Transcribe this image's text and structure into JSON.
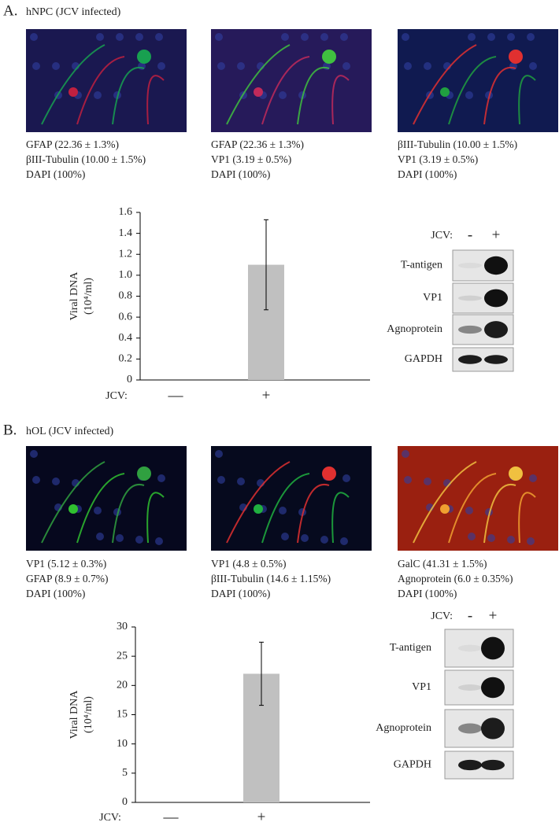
{
  "chart_data": [
    {
      "type": "bar",
      "y_label": [
        "Viral DNA",
        "(10⁴/ml)"
      ],
      "x_label": "JCV:",
      "categories": [
        "—",
        "+"
      ],
      "values": [
        0,
        1.1
      ],
      "errors": [
        0,
        0.43
      ],
      "color": "#c0c0c0",
      "ylim": [
        0,
        1.6
      ],
      "yticks": [
        {
          "value": 0,
          "label": "0"
        },
        {
          "value": 0.2,
          "label": "0.2"
        },
        {
          "value": 0.4,
          "label": "0.4"
        },
        {
          "value": 0.6,
          "label": "0.6"
        },
        {
          "value": 0.8,
          "label": "0.8"
        },
        {
          "value": 1,
          "label": "1.0"
        },
        {
          "value": 1.2,
          "label": "1.2"
        },
        {
          "value": 1.4,
          "label": "1.4"
        },
        {
          "value": 1.6,
          "label": "1.6"
        }
      ]
    },
    {
      "type": "bar",
      "y_label": [
        "Viral DNA",
        "(10⁴/ml)"
      ],
      "x_label": "JCV:",
      "categories": [
        "—",
        "+"
      ],
      "values": [
        0,
        22
      ],
      "errors": [
        0,
        5.4
      ],
      "color": "#c0c0c0",
      "ylim": [
        0,
        30
      ],
      "yticks": [
        0,
        5,
        10,
        15,
        20,
        25,
        30
      ]
    }
  ],
  "panels": [
    {
      "label": "A.",
      "title": "hNPC (JCV infected)",
      "images": [
        {
          "captions": [
            {
              "text": "GFAP (22.36 ± 1.3%)",
              "color": "#e0262b"
            },
            {
              "text": "βIII-Tubulin (10.00 ± 1.5%)",
              "color": "#1d9a4c"
            },
            {
              "text": "DAPI (100%)",
              "color": "#2a62a8"
            }
          ]
        },
        {
          "captions": [
            {
              "text": "GFAP (22.36 ± 1.3%)",
              "color": "#e0262b"
            },
            {
              "text": "VP1 (3.19 ± 0.5%)",
              "color": "#1d9a4c"
            },
            {
              "text": "DAPI (100%)",
              "color": "#2a62a8"
            }
          ]
        },
        {
          "captions": [
            {
              "text": "βIII-Tubulin (10.00 ± 1.5%)",
              "color": "#1d9a4c"
            },
            {
              "text": "VP1 (3.19 ± 0.5%)",
              "color": "#e0262b"
            },
            {
              "text": "DAPI (100%)",
              "color": "#2a62a8"
            }
          ]
        }
      ],
      "blot": {
        "header": "JCV:",
        "lanes": [
          "-",
          "+"
        ],
        "rows": [
          "T-antigen",
          "VP1",
          "Agnoprotein",
          "GAPDH"
        ]
      }
    },
    {
      "label": "B.",
      "title": "hOL (JCV infected)",
      "images": [
        {
          "captions": [
            {
              "text": "VP1 (5.12 ± 0.3%)",
              "color": "#e0262b"
            },
            {
              "text": "GFAP (8.9 ± 0.7%)",
              "color": "#1d9a4c"
            },
            {
              "text": "DAPI (100%)",
              "color": "#2a62a8"
            }
          ]
        },
        {
          "captions": [
            {
              "text": "VP1 (4.8 ± 0.5%)",
              "color": "#e0262b"
            },
            {
              "text": "βIII-Tubulin (14.6 ± 1.15%)",
              "color": "#1d9a4c"
            },
            {
              "text": "DAPI (100%)",
              "color": "#2a62a8"
            }
          ]
        },
        {
          "captions": [
            {
              "text": "GalC (41.31 ± 1.5%)",
              "color": "#e0262b"
            },
            {
              "text": "Agnoprotein (6.0 ± 0.35%)",
              "color": "#1d9a4c"
            },
            {
              "text": "DAPI (100%)",
              "color": "#2a62a8"
            }
          ]
        }
      ],
      "blot": {
        "header": "JCV:",
        "lanes": [
          "-",
          "+"
        ],
        "rows": [
          "T-antigen",
          "VP1",
          "Agnoprotein",
          "GAPDH"
        ]
      }
    }
  ]
}
